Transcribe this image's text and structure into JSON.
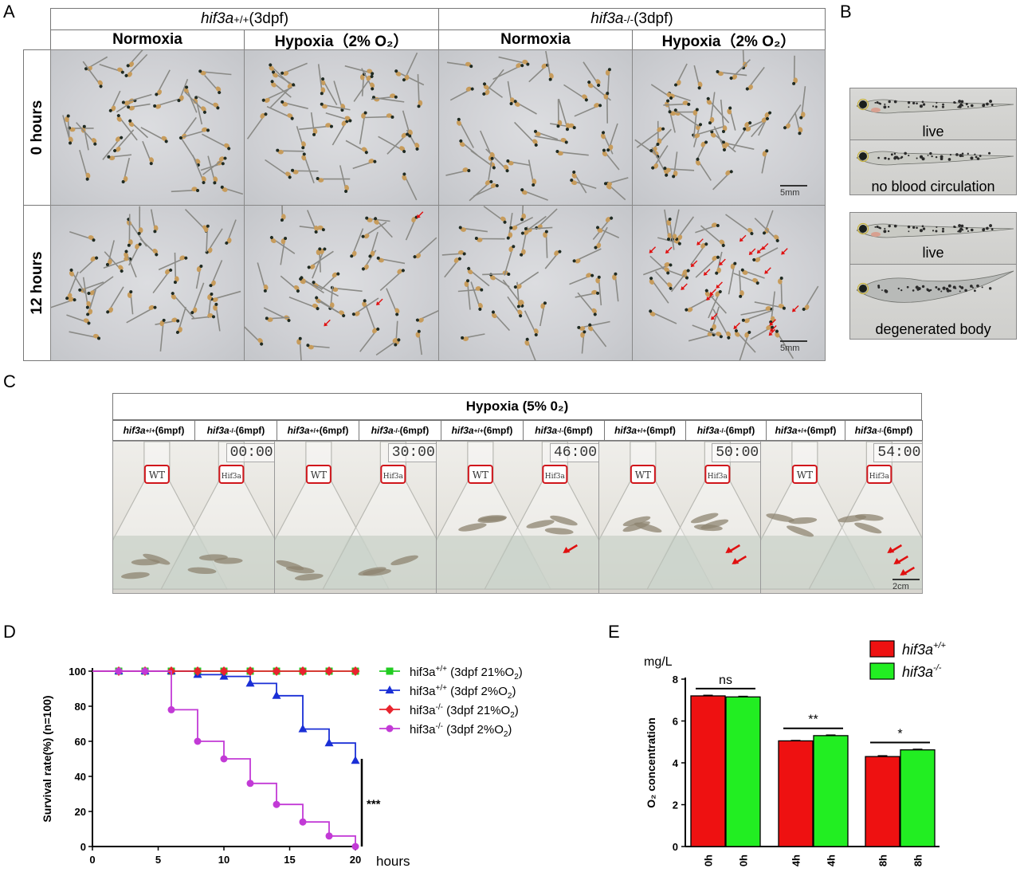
{
  "panel_labels": [
    "A",
    "B",
    "C",
    "D",
    "E"
  ],
  "panelA": {
    "group1": "hif3a+/+(3dpf)",
    "group1_gene": "hif3a",
    "group1_sup": "+/+",
    "group1_suffix": "(3dpf)",
    "group2_gene": "hif3a",
    "group2_sup": "-/-",
    "group2_suffix": "(3dpf)",
    "conditions": [
      "Normoxia",
      "Hypoxia（2% O₂）",
      "Normoxia",
      "Hypoxia（2% O₂）"
    ],
    "rows": [
      "0 hours",
      "12 hours"
    ],
    "scale_bar": "5mm"
  },
  "panelB": {
    "captions": [
      "live",
      "no blood circulation",
      "live",
      "degenerated body"
    ]
  },
  "panelC": {
    "title": "Hypoxia (5% 0₂)",
    "col_headers": [
      {
        "gene": "hif3a",
        "sup": "+/+",
        "suffix": "(6mpf)"
      },
      {
        "gene": "hif3a",
        "sup": "-/-",
        "suffix": "(6mpf)"
      },
      {
        "gene": "hif3a",
        "sup": "+/+",
        "suffix": "(6mpf)"
      },
      {
        "gene": "hif3a",
        "sup": "-/-",
        "suffix": "(6mpf)"
      },
      {
        "gene": "hif3a",
        "sup": "+/+",
        "suffix": "(6mpf)"
      },
      {
        "gene": "hif3a",
        "sup": "-/-",
        "suffix": "(6mpf)"
      },
      {
        "gene": "hif3a",
        "sup": "+/+",
        "suffix": "(6mpf)"
      },
      {
        "gene": "hif3a",
        "sup": "-/-",
        "suffix": "(6mpf)"
      },
      {
        "gene": "hif3a",
        "sup": "+/+",
        "suffix": "(6mpf)"
      },
      {
        "gene": "hif3a",
        "sup": "-/-",
        "suffix": "(6mpf)"
      }
    ],
    "times": [
      "00:00",
      "30:00",
      "46:00",
      "50:00",
      "54:00"
    ],
    "flask_labels": [
      "WT",
      "Hif3a"
    ],
    "scale_bar": "2cm"
  },
  "chart_data": [
    {
      "panel": "D",
      "type": "line",
      "ylabel": "Survival rate(%) (n=100)",
      "xlabel": "hours",
      "xlim": [
        0,
        20
      ],
      "ylim": [
        0,
        100
      ],
      "xticks": [
        0,
        5,
        10,
        15,
        20
      ],
      "yticks": [
        0,
        20,
        40,
        60,
        80,
        100
      ],
      "significance": "***",
      "series": [
        {
          "name": "hif3a+/+ (3dpf 21%O2)",
          "label_gene": "hif3a",
          "label_sup": "+/+",
          "label_rest": " (3dpf 21%O",
          "label_sub": "2",
          "label_end": ")",
          "color": "#22cc22",
          "marker": "square",
          "x": [
            0,
            2,
            4,
            6,
            8,
            10,
            12,
            14,
            16,
            18,
            20
          ],
          "y": [
            100,
            100,
            100,
            100,
            100,
            100,
            100,
            100,
            100,
            100,
            100
          ]
        },
        {
          "name": "hif3a+/+ (3dpf 2%O2)",
          "label_gene": "hif3a",
          "label_sup": "+/+",
          "label_rest": " (3dpf 2%O",
          "label_sub": "2",
          "label_end": ")",
          "color": "#1a2fd6",
          "marker": "triangle",
          "x": [
            0,
            2,
            4,
            6,
            8,
            10,
            12,
            14,
            16,
            18,
            20
          ],
          "y": [
            100,
            100,
            100,
            100,
            98,
            97,
            93,
            86,
            67,
            59,
            49
          ]
        },
        {
          "name": "hif3a-/- (3dpf 21%O2)",
          "label_gene": "hif3a",
          "label_sup": "-/-",
          "label_rest": "  (3dpf 21%O",
          "label_sub": "2",
          "label_end": ")",
          "color": "#e8242e",
          "marker": "diamond",
          "x": [
            0,
            2,
            4,
            6,
            8,
            10,
            12,
            14,
            16,
            18,
            20
          ],
          "y": [
            100,
            100,
            100,
            100,
            100,
            100,
            100,
            100,
            100,
            100,
            100
          ]
        },
        {
          "name": "hif3a-/- (3dpf 2%O2)",
          "label_gene": "hif3a",
          "label_sup": "-/-",
          "label_rest": "  (3dpf 2%O",
          "label_sub": "2",
          "label_end": ")",
          "color": "#c23ad6",
          "marker": "circle",
          "x": [
            0,
            2,
            4,
            6,
            8,
            10,
            12,
            14,
            16,
            18,
            20
          ],
          "y": [
            100,
            100,
            100,
            78,
            60,
            50,
            36,
            24,
            14,
            6,
            0
          ]
        }
      ]
    },
    {
      "panel": "E",
      "type": "bar",
      "ylabel": "O₂ concentration",
      "unit": "mg/L",
      "ylim": [
        0,
        8
      ],
      "yticks": [
        0,
        2,
        4,
        6,
        8
      ],
      "categories": [
        "0h",
        "0h",
        "4h",
        "4h",
        "8h",
        "8h"
      ],
      "values": [
        7.2,
        7.15,
        5.05,
        5.3,
        4.3,
        4.62
      ],
      "errors": [
        0.03,
        0.03,
        0.02,
        0.03,
        0.04,
        0.03
      ],
      "bar_colors": [
        "#ee1111",
        "#22ee22",
        "#ee1111",
        "#22ee22",
        "#ee1111",
        "#22ee22"
      ],
      "legend": [
        {
          "name": "hif3a+/+",
          "gene": "hif3a",
          "sup": "+/+",
          "color": "#ee1111"
        },
        {
          "name": "hif3a-/-",
          "gene": "hif3a",
          "sup": "-/-",
          "color": "#22ee22"
        }
      ],
      "significance": [
        {
          "pair": [
            0,
            1
          ],
          "label": "ns"
        },
        {
          "pair": [
            2,
            3
          ],
          "label": "**"
        },
        {
          "pair": [
            4,
            5
          ],
          "label": "*"
        }
      ]
    }
  ]
}
